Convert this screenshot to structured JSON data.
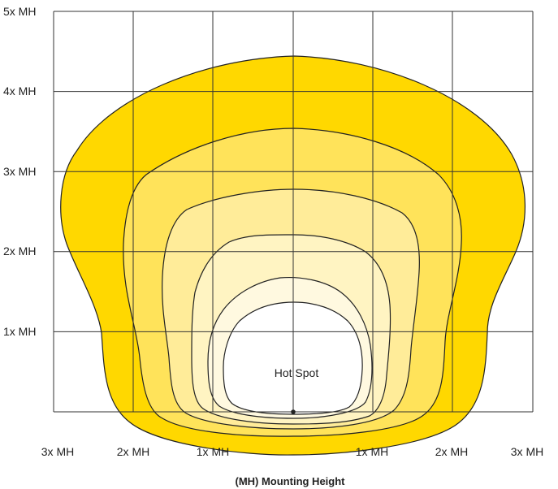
{
  "diagram": {
    "type": "light distribution isolux plot",
    "y_axis_labels": [
      "5x MH",
      "4x MH",
      "3x MH",
      "2x MH",
      "1x MH"
    ],
    "x_axis_labels": [
      "3x MH",
      "2x MH",
      "1x MH",
      "1x MH",
      "2x MH",
      "3x MH"
    ],
    "caption": "(MH) Mounting Height",
    "center_label": "Hot Spot",
    "grid": true,
    "zone_colors": [
      "#FFD800",
      "#FFE35A",
      "#FFEC99",
      "#FFF4C2",
      "#FFF9E0",
      "#FFFFFF"
    ],
    "outline_color": "#222222",
    "grid_color": "#333333"
  }
}
